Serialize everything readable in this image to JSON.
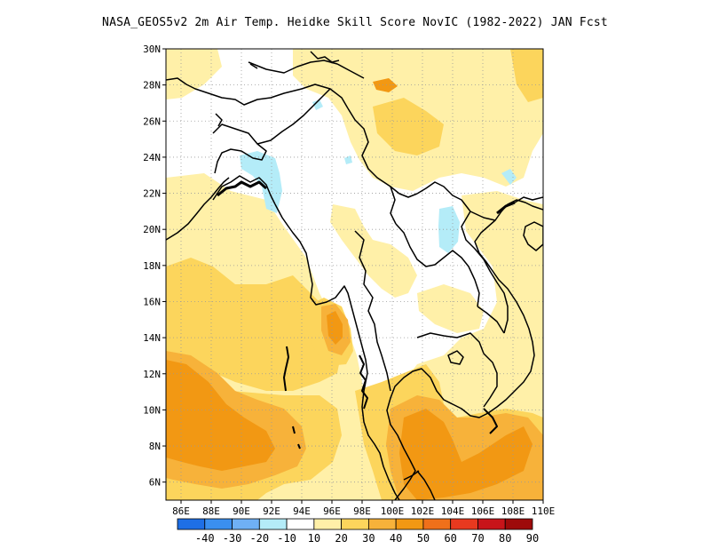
{
  "title": "NASA_GEOS5v2  2m Air Temp. Heidke Skill Score NovIC (1982-2022) JAN Fcst",
  "map": {
    "lat_labels": [
      "30N",
      "28N",
      "26N",
      "24N",
      "22N",
      "20N",
      "18N",
      "16N",
      "14N",
      "12N",
      "10N",
      "8N",
      "6N"
    ],
    "lon_labels": [
      "86E",
      "88E",
      "90E",
      "92E",
      "94E",
      "96E",
      "98E",
      "100E",
      "102E",
      "104E",
      "106E",
      "108E",
      "110E"
    ],
    "lon_range": [
      85,
      110
    ],
    "lat_range": [
      5,
      30
    ],
    "grid": "dotted"
  },
  "colorbar": {
    "labels": [
      "-40",
      "-30",
      "-20",
      "-10",
      "10",
      "20",
      "30",
      "40",
      "50",
      "60",
      "70",
      "80",
      "90"
    ],
    "colors": [
      "#1e6fe6",
      "#3a8ff0",
      "#6fb0f5",
      "#b4ecf8",
      "#ffffff",
      "#fff0a8",
      "#fcd55c",
      "#f7b23a",
      "#f29813",
      "#f0701a",
      "#e8391f",
      "#c8141a",
      "#9e0a0a"
    ]
  },
  "field_colors": {
    "white": "#ffffff",
    "light_yellow": "#fff0a8",
    "yellow": "#fcd55c",
    "light_orange": "#f7b23a",
    "orange": "#f29813",
    "light_cyan": "#b4ecf8"
  }
}
